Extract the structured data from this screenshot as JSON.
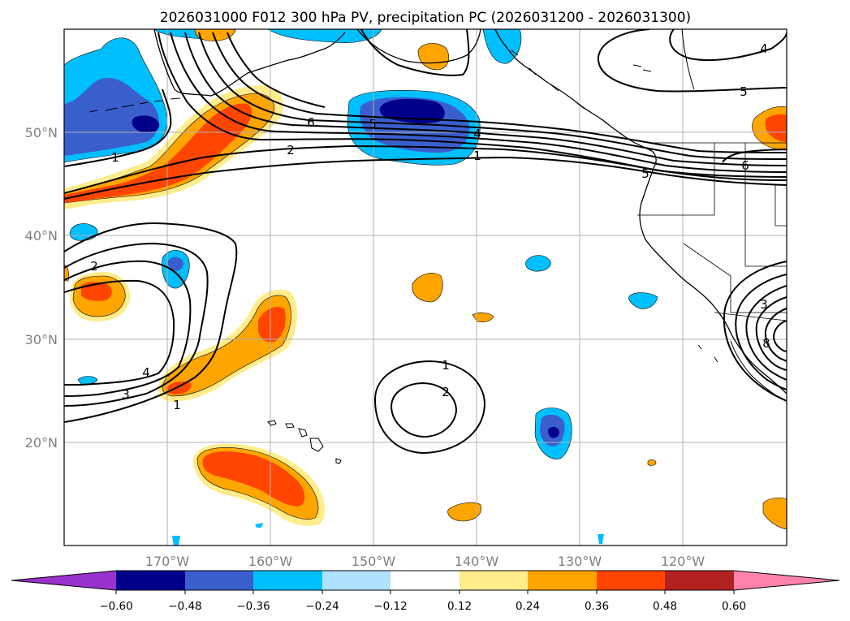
{
  "title": "2026031000 F012 300 hPa PV, precipitation PC (2026031200 - 2026031300)",
  "map": {
    "lon_ticks": [
      "170°W",
      "160°W",
      "150°W",
      "140°W",
      "130°W",
      "120°W"
    ],
    "lat_ticks": [
      "50°N",
      "40°N",
      "30°N",
      "20°N"
    ],
    "contour_labels": [
      "1",
      "2",
      "6",
      "5",
      "4",
      "1",
      "2",
      "3",
      "4",
      "1",
      "1",
      "2",
      "5",
      "4",
      "6",
      "5",
      "3",
      "8"
    ],
    "gridlines": true
  },
  "colorbar": {
    "ticks": [
      "−0.60",
      "−0.48",
      "−0.36",
      "−0.24",
      "−0.12",
      "0.12",
      "0.24",
      "0.36",
      "0.48",
      "0.60"
    ],
    "colors": [
      "#9932cc",
      "#00008b",
      "#3a5fcd",
      "#00bfff",
      "#b0e2ff",
      "#ffffff",
      "#ffec8b",
      "#ffa500",
      "#ff4500",
      "#b22222",
      "#ff82ab"
    ]
  },
  "colors": {
    "neg_dark": "#00008b",
    "neg_mid": "#3a5fcd",
    "neg_light": "#00bfff",
    "neg_pale": "#b0e2ff",
    "pos_pale": "#ffec8b",
    "pos_light": "#ffa500",
    "pos_mid": "#ff4500"
  }
}
